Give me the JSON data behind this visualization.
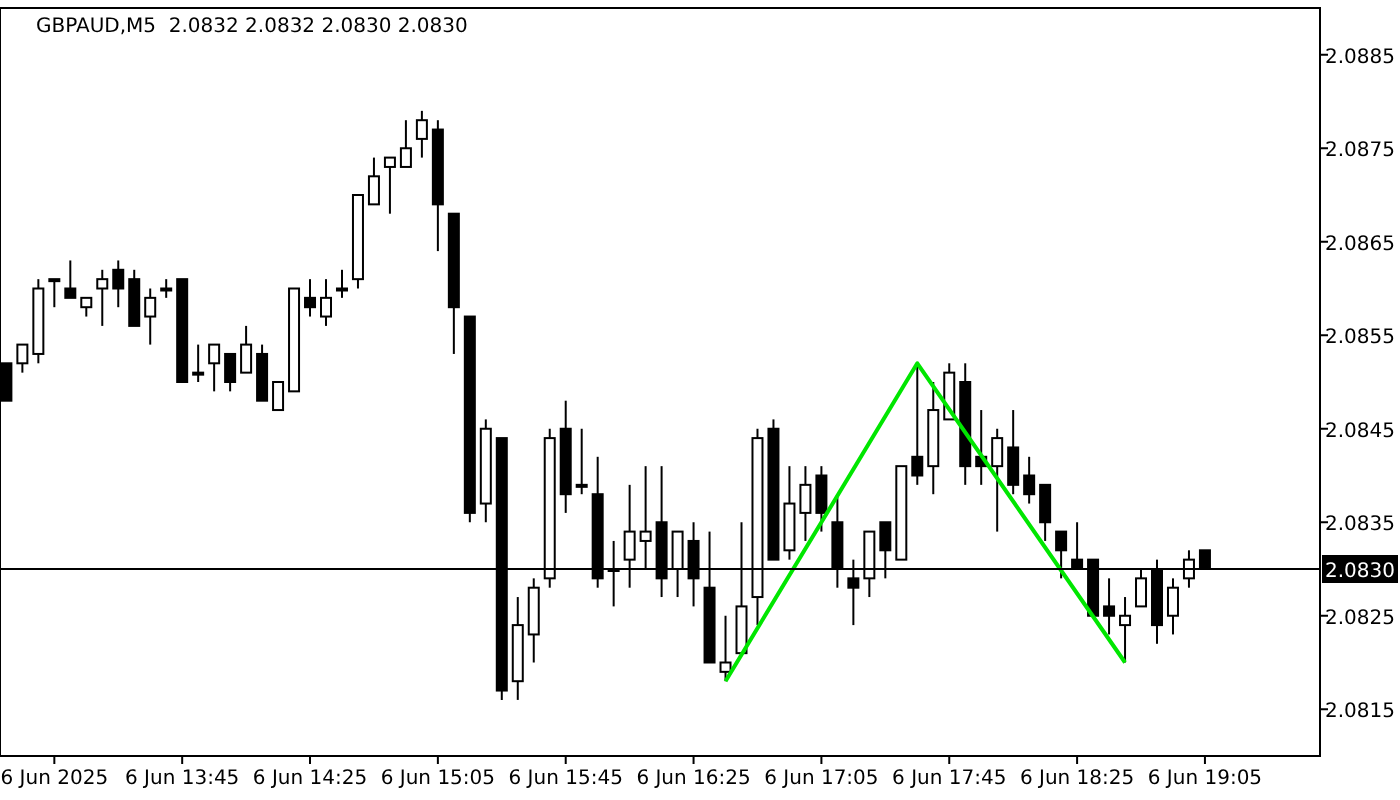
{
  "chart_data": {
    "type": "candlestick",
    "title": "GBPAUD,M5  2.0832 2.0832 2.0830 2.0830",
    "x": [
      "2025-06-06T12:50",
      "2025-06-06T12:55",
      "2025-06-06T13:00",
      "2025-06-06T13:05",
      "2025-06-06T13:10",
      "2025-06-06T13:15",
      "2025-06-06T13:20",
      "2025-06-06T13:25",
      "2025-06-06T13:30",
      "2025-06-06T13:35",
      "2025-06-06T13:40",
      "2025-06-06T13:45",
      "2025-06-06T13:50",
      "2025-06-06T13:55",
      "2025-06-06T14:00",
      "2025-06-06T14:05",
      "2025-06-06T14:10",
      "2025-06-06T14:15",
      "2025-06-06T14:20",
      "2025-06-06T14:25",
      "2025-06-06T14:30",
      "2025-06-06T14:35",
      "2025-06-06T14:40",
      "2025-06-06T14:45",
      "2025-06-06T14:50",
      "2025-06-06T14:55",
      "2025-06-06T15:00",
      "2025-06-06T15:05",
      "2025-06-06T15:10",
      "2025-06-06T15:15",
      "2025-06-06T15:20",
      "2025-06-06T15:25",
      "2025-06-06T15:30",
      "2025-06-06T15:35",
      "2025-06-06T15:40",
      "2025-06-06T15:45",
      "2025-06-06T15:50",
      "2025-06-06T15:55",
      "2025-06-06T16:00",
      "2025-06-06T16:05",
      "2025-06-06T16:10",
      "2025-06-06T16:15",
      "2025-06-06T16:20",
      "2025-06-06T16:25",
      "2025-06-06T16:30",
      "2025-06-06T16:35",
      "2025-06-06T16:40",
      "2025-06-06T16:45",
      "2025-06-06T16:50",
      "2025-06-06T16:55",
      "2025-06-06T17:00",
      "2025-06-06T17:05",
      "2025-06-06T17:10",
      "2025-06-06T17:15",
      "2025-06-06T17:20",
      "2025-06-06T17:25",
      "2025-06-06T17:30",
      "2025-06-06T17:35",
      "2025-06-06T17:40",
      "2025-06-06T17:45",
      "2025-06-06T17:50",
      "2025-06-06T17:55",
      "2025-06-06T18:00",
      "2025-06-06T18:05",
      "2025-06-06T18:10",
      "2025-06-06T18:15",
      "2025-06-06T18:20",
      "2025-06-06T18:25",
      "2025-06-06T18:30",
      "2025-06-06T18:35",
      "2025-06-06T18:40",
      "2025-06-06T18:45",
      "2025-06-06T18:50",
      "2025-06-06T18:55",
      "2025-06-06T19:00",
      "2025-06-06T19:05"
    ],
    "ohlc": [
      [
        2.0852,
        2.0852,
        2.0848,
        2.0848
      ],
      [
        2.0852,
        2.0854,
        2.0851,
        2.0854
      ],
      [
        2.0853,
        2.0861,
        2.0852,
        2.086
      ],
      [
        2.0861,
        2.0861,
        2.0858,
        2.0861
      ],
      [
        2.086,
        2.0863,
        2.0859,
        2.0859
      ],
      [
        2.0858,
        2.0859,
        2.0857,
        2.0859
      ],
      [
        2.086,
        2.0862,
        2.0856,
        2.0861
      ],
      [
        2.0862,
        2.0863,
        2.0858,
        2.086
      ],
      [
        2.0861,
        2.0862,
        2.0856,
        2.0856
      ],
      [
        2.0857,
        2.086,
        2.0854,
        2.0859
      ],
      [
        2.086,
        2.0861,
        2.0859,
        2.086
      ],
      [
        2.0861,
        2.0861,
        2.085,
        2.085
      ],
      [
        2.0851,
        2.0854,
        2.085,
        2.0851
      ],
      [
        2.0852,
        2.0854,
        2.0849,
        2.0854
      ],
      [
        2.0853,
        2.0853,
        2.0849,
        2.085
      ],
      [
        2.0851,
        2.0856,
        2.0851,
        2.0854
      ],
      [
        2.0853,
        2.0854,
        2.0848,
        2.0848
      ],
      [
        2.0847,
        2.085,
        2.0847,
        2.085
      ],
      [
        2.0849,
        2.086,
        2.0849,
        2.086
      ],
      [
        2.0859,
        2.0861,
        2.0857,
        2.0858
      ],
      [
        2.0857,
        2.0861,
        2.0856,
        2.0859
      ],
      [
        2.086,
        2.0862,
        2.0859,
        2.086
      ],
      [
        2.0861,
        2.087,
        2.086,
        2.087
      ],
      [
        2.0869,
        2.0874,
        2.0869,
        2.0872
      ],
      [
        2.0873,
        2.0874,
        2.0868,
        2.0874
      ],
      [
        2.0873,
        2.0878,
        2.0873,
        2.0875
      ],
      [
        2.0876,
        2.0879,
        2.0874,
        2.0878
      ],
      [
        2.0877,
        2.0878,
        2.0864,
        2.0869
      ],
      [
        2.0868,
        2.0868,
        2.0853,
        2.0858
      ],
      [
        2.0857,
        2.0857,
        2.0835,
        2.0836
      ],
      [
        2.0837,
        2.0846,
        2.0835,
        2.0845
      ],
      [
        2.0844,
        2.0844,
        2.0816,
        2.0817
      ],
      [
        2.0818,
        2.0827,
        2.0816,
        2.0824
      ],
      [
        2.0823,
        2.0829,
        2.082,
        2.0828
      ],
      [
        2.0829,
        2.0845,
        2.0828,
        2.0844
      ],
      [
        2.0845,
        2.0848,
        2.0836,
        2.0838
      ],
      [
        2.0839,
        2.0845,
        2.0838,
        2.0839
      ],
      [
        2.0838,
        2.0842,
        2.0828,
        2.0829
      ],
      [
        2.083,
        2.0833,
        2.0826,
        2.083
      ],
      [
        2.0831,
        2.0839,
        2.0828,
        2.0834
      ],
      [
        2.0833,
        2.0841,
        2.083,
        2.0834
      ],
      [
        2.0835,
        2.0841,
        2.0827,
        2.0829
      ],
      [
        2.083,
        2.0834,
        2.0827,
        2.0834
      ],
      [
        2.0833,
        2.0835,
        2.0826,
        2.0829
      ],
      [
        2.0828,
        2.0834,
        2.082,
        2.082
      ],
      [
        2.0819,
        2.0825,
        2.0818,
        2.082
      ],
      [
        2.0821,
        2.0835,
        2.0821,
        2.0826
      ],
      [
        2.0827,
        2.0845,
        2.0824,
        2.0844
      ],
      [
        2.0845,
        2.0846,
        2.0831,
        2.0831
      ],
      [
        2.0832,
        2.0841,
        2.0831,
        2.0837
      ],
      [
        2.0836,
        2.0841,
        2.0833,
        2.0839
      ],
      [
        2.084,
        2.0841,
        2.0834,
        2.0836
      ],
      [
        2.0835,
        2.0838,
        2.0828,
        2.083
      ],
      [
        2.0829,
        2.0831,
        2.0824,
        2.0828
      ],
      [
        2.0829,
        2.0834,
        2.0827,
        2.0834
      ],
      [
        2.0835,
        2.0835,
        2.0829,
        2.0832
      ],
      [
        2.0831,
        2.0841,
        2.0831,
        2.0841
      ],
      [
        2.0842,
        2.0852,
        2.0839,
        2.084
      ],
      [
        2.0841,
        2.085,
        2.0838,
        2.0847
      ],
      [
        2.0846,
        2.0852,
        2.0846,
        2.0851
      ],
      [
        2.085,
        2.0852,
        2.0839,
        2.0841
      ],
      [
        2.0842,
        2.0847,
        2.0839,
        2.0841
      ],
      [
        2.0841,
        2.0845,
        2.0834,
        2.0844
      ],
      [
        2.0843,
        2.0847,
        2.0838,
        2.0839
      ],
      [
        2.084,
        2.0842,
        2.0837,
        2.0838
      ],
      [
        2.0839,
        2.0839,
        2.0833,
        2.0835
      ],
      [
        2.0834,
        2.0834,
        2.0829,
        2.0832
      ],
      [
        2.0831,
        2.0835,
        2.083,
        2.083
      ],
      [
        2.0831,
        2.0831,
        2.0825,
        2.0825
      ],
      [
        2.0826,
        2.0829,
        2.0823,
        2.0825
      ],
      [
        2.0824,
        2.0827,
        2.082,
        2.0825
      ],
      [
        2.0826,
        2.083,
        2.0826,
        2.0829
      ],
      [
        2.083,
        2.0831,
        2.0822,
        2.0824
      ],
      [
        2.0825,
        2.0829,
        2.0823,
        2.0828
      ],
      [
        2.0829,
        2.0832,
        2.0828,
        2.0831
      ],
      [
        2.0832,
        2.0832,
        2.083,
        2.083
      ]
    ],
    "series": [
      {
        "type": "line",
        "x": [
          "2025-06-06T16:35",
          "2025-06-06T17:35",
          "2025-06-06T18:40"
        ],
        "values": [
          2.0818,
          2.0852,
          2.082
        ],
        "color": "#00e600"
      }
    ],
    "xlim": [
      "2025-06-06T12:48",
      "2025-06-06T19:41"
    ],
    "xticks": [
      {
        "value": "2025-06-06T13:05",
        "label": "6 Jun 2025"
      },
      {
        "value": "2025-06-06T13:45",
        "label": "6 Jun 13:45"
      },
      {
        "value": "2025-06-06T14:25",
        "label": "6 Jun 14:25"
      },
      {
        "value": "2025-06-06T15:05",
        "label": "6 Jun 15:05"
      },
      {
        "value": "2025-06-06T15:45",
        "label": "6 Jun 15:45"
      },
      {
        "value": "2025-06-06T16:25",
        "label": "6 Jun 16:25"
      },
      {
        "value": "2025-06-06T17:05",
        "label": "6 Jun 17:05"
      },
      {
        "value": "2025-06-06T17:45",
        "label": "6 Jun 17:45"
      },
      {
        "value": "2025-06-06T18:25",
        "label": "6 Jun 18:25"
      },
      {
        "value": "2025-06-06T19:05",
        "label": "6 Jun 19:05"
      }
    ],
    "ylim": [
      2.081,
      2.089
    ],
    "yticks": [
      2.0815,
      2.0825,
      2.0835,
      2.0845,
      2.0855,
      2.0865,
      2.0875,
      2.0885
    ],
    "ref_lines": [
      {
        "axis": "y",
        "value": 2.083,
        "label": "2.0830",
        "color": "#000000"
      }
    ],
    "grid": false
  }
}
